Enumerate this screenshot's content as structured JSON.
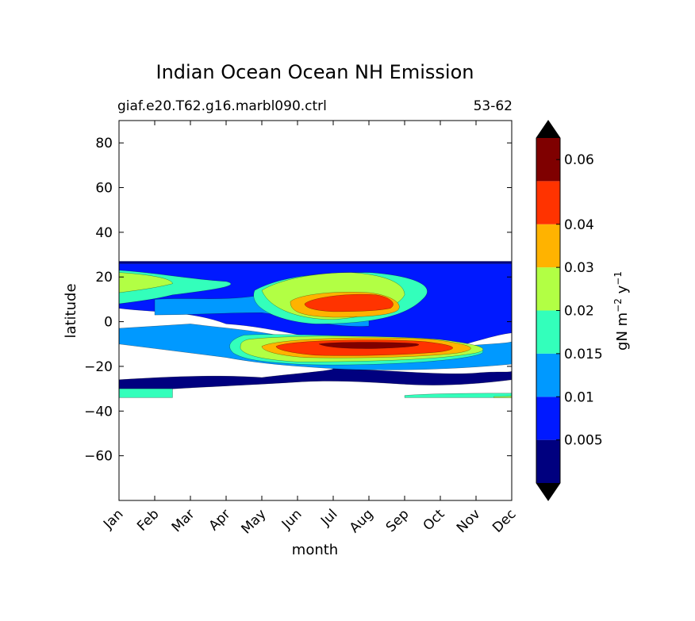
{
  "chart_data": {
    "type": "contour",
    "title": "Indian Ocean Ocean NH Emission",
    "subtitle_left": "giaf.e20.T62.g16.marbl090.ctrl",
    "subtitle_right": "53-62",
    "xlabel": "month",
    "ylabel": "latitude",
    "x_ticks": [
      "Jan",
      "Feb",
      "Mar",
      "Apr",
      "May",
      "Jun",
      "Jul",
      "Aug",
      "Sep",
      "Oct",
      "Nov",
      "Dec"
    ],
    "ylim": [
      -80,
      90
    ],
    "y_ticks": [
      80,
      60,
      40,
      20,
      0,
      -20,
      -40,
      -60
    ],
    "y_tick_labels": [
      "80",
      "60",
      "40",
      "20",
      "0",
      "−20",
      "−40",
      "−60"
    ],
    "data_lat_range": [
      -34,
      27
    ],
    "colorbar": {
      "label": "gN m^-2 y^-1",
      "label_base": "gN m",
      "label_exp1": "−2",
      "label_mid": " y",
      "label_exp2": "−1",
      "extend": "both",
      "levels": [
        0,
        0.005,
        0.01,
        0.015,
        0.02,
        0.03,
        0.04,
        0.05,
        0.07
      ],
      "tick_values": [
        0.005,
        0.01,
        0.015,
        0.02,
        0.03,
        0.04,
        0.06
      ],
      "tick_labels": [
        "0.005",
        "0.01",
        "0.015",
        "0.02",
        "0.03",
        "0.04",
        "0.06"
      ],
      "colors": [
        "#00007f",
        "#0019ff",
        "#0099ff",
        "#33ffbb",
        "#b2ff44",
        "#ffb300",
        "#ff3300",
        "#7f0000"
      ],
      "under_color": "#000000",
      "over_color": "#000000"
    },
    "fill_bands": [
      {
        "color": "#00007f",
        "paths": [
          "M0,-26 C2,-24 3,-24 4,-25 C5,-23 6,-22 6,-21 C8,-22 9,-24 10,-23 C10.6,-22 11,-23 11,-22 L11,-26 C10,-28 9,-29 8,-28 C7,-27 6,-26 5,-27 C3,-29 1,-30 0,-32 Z",
          "M0,26 L11,26 L11,27 L0,27 Z"
        ]
      },
      {
        "color": "#0019ff",
        "paths": [
          "M0,6 C1,4 2,5 3,-1 C4,-2 5,-6 6,-9 C7,-13 8,-14 9,-13 C10,-9 10.5,-6 11,-5 L11,26 L0,26 Z"
        ]
      },
      {
        "color": "#0099ff",
        "paths": [
          "M2,-1 C3,-3 4,-4 5,-8 C6,-13 8,-14 9,-12 C10,-10 10.8,-10 11,-9 L11,-19 C9,-22 7,-22 6,-21 C5,-20 4,-19 3,-16 C2,-14 1,-12 0,-10 L0,-3 Z",
          "M1,10 C2,11 3,9 4,12 C5,19 6,21 7,22 L7,-2 C6,-3 5,2 4,4 C3,4 2,3 1,3 Z"
        ]
      },
      {
        "color": "#33ffbb",
        "paths": [
          "M0,23 C1,22 2,19 3,18 C3.5,16 2.5,14 1.5,12 C1,10 0.5,9 0,8 Z",
          "M3.8,14 C4.5,20 5.5,22 7,22 C8,21 9,17 8.5,10 C8,2 7,-1 5.5,-1 C4.5,0 3.6,6 3.8,14 Z",
          "M3.5,-6 C4.5,-5 8,-7 9,-9 C10,-11 10.5,-13 10,-15 C9,-19 6,-20 5,-19 C4,-18 3.5,-17 3.2,-14 C3,-11 3.1,-8 3.5,-6 Z",
          "M8,-33 C8.8,-32 10.2,-32 11,-32 L11,-34 L8,-34 Z",
          "M0,-30 L1.5,-30 L1.5,-34 L0,-34 Z"
        ]
      },
      {
        "color": "#b2ff44",
        "paths": [
          "M0,22 C1,21 1.5,19 1.5,17 C1,15 0.5,14 0,13 Z",
          "M4,14 C4.5,19 5.5,22 6.5,22 C7.5,21 8,17 8,12 C7.8,6 7,2 6,1 C5,1 4.2,6 4,14 Z",
          "M3.6,-8 C4.5,-6 7.5,-6 9,-8 C10,-10 10.5,-12 10,-14 C9,-17 7,-18 5,-18 C4,-17 3.5,-15 3.4,-12 C3.4,-10 3.4,-9 3.6,-8 Z",
          "M10.5,-33.5 C10.8,-33.5 11,-33.5 11,-33 L11,-34 L10.5,-34 Z"
        ]
      },
      {
        "color": "#ffb300",
        "paths": [
          "M4.8,9 C5,12 6,14 7,13 C7.6,12 8,8 7.8,5 C7.6,3 7,2 6,2 C5,2.5 4.8,5 4.8,9 Z",
          "M4,-11 C4.5,-7 7.5,-6.5 8.8,-8 C9.8,-10 10.2,-12 9.5,-14 C8.5,-16 6.5,-16.5 5.2,-16 C4.4,-15 4,-13 4,-11 Z"
        ]
      },
      {
        "color": "#ff3300",
        "paths": [
          "M5.2,8 C5.4,11 6.5,13 7.2,12 C7.6,11 7.8,8 7.6,6 C7.3,5 6.8,4.5 6,4.5 C5.4,5 5.2,6.5 5.2,8 Z",
          "M4.4,-11 C4.8,-8 7.5,-7.5 8.6,-9 C9.4,-10.5 9.6,-12 9,-13.5 C8,-15 6.5,-15.5 5.5,-15 C4.8,-14 4.4,-12.5 4.4,-11 Z"
        ]
      },
      {
        "color": "#7f0000",
        "paths": [
          "M5.6,-10 C6,-9 7.5,-9 8.3,-9.8 C8.6,-10.5 8.2,-11.5 7.2,-12 C6.4,-12.2 5.8,-11.5 5.6,-10 Z"
        ]
      }
    ]
  }
}
